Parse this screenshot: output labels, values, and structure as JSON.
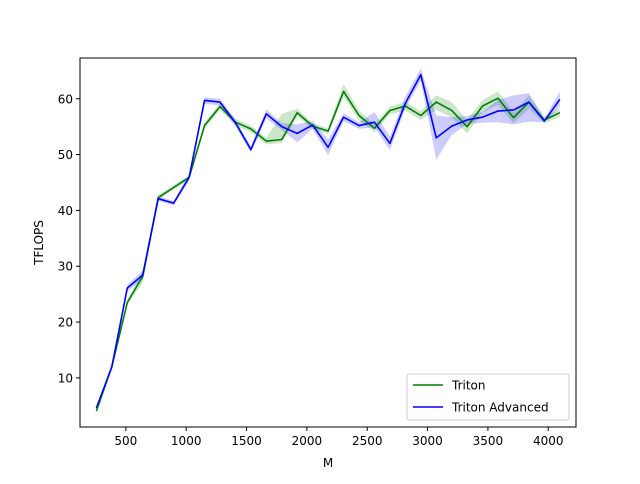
{
  "chart_data": {
    "type": "line",
    "xlabel": "M",
    "ylabel": "TFLOPS",
    "xlim": [
      120,
      4230
    ],
    "ylim": [
      1.2,
      67.3
    ],
    "xticks": [
      500,
      1000,
      1500,
      2000,
      2500,
      3000,
      3500,
      4000
    ],
    "yticks": [
      10,
      20,
      30,
      40,
      50,
      60
    ],
    "grid": false,
    "legend": {
      "position": "lower-right",
      "entries": [
        "Triton",
        "Triton Advanced"
      ]
    },
    "x": [
      256,
      384,
      512,
      640,
      768,
      896,
      1024,
      1152,
      1280,
      1408,
      1536,
      1664,
      1792,
      1920,
      2048,
      2176,
      2304,
      2432,
      2560,
      2688,
      2816,
      2944,
      3072,
      3200,
      3328,
      3456,
      3584,
      3712,
      3840,
      3968,
      4096
    ],
    "series": [
      {
        "name": "Triton",
        "color": "#008000",
        "values": [
          4.1,
          12.0,
          23.5,
          28.2,
          42.3,
          44.1,
          45.9,
          55.2,
          58.6,
          55.8,
          54.6,
          52.4,
          52.7,
          57.5,
          55.1,
          54.2,
          61.3,
          57.0,
          54.7,
          57.9,
          58.7,
          57.0,
          59.4,
          57.9,
          55.0,
          58.7,
          60.1,
          56.6,
          59.4,
          56.2,
          57.5
        ],
        "band_low": [
          3.7,
          11.7,
          23.1,
          27.0,
          41.9,
          43.7,
          45.5,
          54.6,
          58.0,
          55.2,
          54.0,
          51.8,
          52.1,
          56.8,
          54.6,
          53.7,
          60.4,
          56.1,
          54.0,
          57.2,
          57.9,
          56.2,
          58.0,
          56.6,
          53.8,
          57.6,
          58.9,
          55.6,
          58.2,
          55.6,
          56.8
        ],
        "band_high": [
          4.5,
          12.3,
          23.9,
          29.3,
          42.7,
          44.5,
          46.3,
          55.8,
          59.2,
          56.4,
          55.2,
          53.0,
          57.3,
          58.2,
          55.6,
          54.7,
          62.6,
          57.9,
          55.4,
          58.6,
          59.5,
          57.8,
          60.6,
          59.4,
          56.2,
          59.8,
          61.3,
          57.6,
          60.6,
          56.8,
          58.2
        ]
      },
      {
        "name": "Triton Advanced",
        "color": "#0000ff",
        "values": [
          4.6,
          12.0,
          26.1,
          28.4,
          42.1,
          41.3,
          45.9,
          59.7,
          59.4,
          55.7,
          50.9,
          57.3,
          55.0,
          53.8,
          55.3,
          51.3,
          56.7,
          55.2,
          55.8,
          52.0,
          59.2,
          64.3,
          53.0,
          55.1,
          56.2,
          56.7,
          57.8,
          58.0,
          59.4,
          56.0,
          59.9
        ],
        "band_low": [
          4.2,
          11.7,
          25.5,
          27.6,
          41.7,
          40.9,
          45.3,
          59.1,
          58.8,
          55.1,
          50.3,
          56.5,
          54.4,
          52.2,
          54.6,
          49.9,
          56.0,
          54.6,
          54.9,
          50.8,
          58.3,
          63.2,
          49.1,
          53.5,
          55.5,
          55.7,
          55.8,
          55.4,
          55.9,
          55.8,
          58.5
        ],
        "band_high": [
          5.0,
          12.3,
          26.7,
          29.2,
          42.5,
          41.7,
          46.5,
          60.3,
          60.0,
          56.3,
          51.5,
          58.1,
          55.6,
          55.4,
          56.0,
          52.7,
          57.4,
          55.8,
          57.6,
          53.2,
          60.4,
          65.4,
          57.0,
          56.7,
          56.9,
          57.7,
          59.8,
          60.6,
          61.0,
          56.4,
          61.3
        ]
      }
    ]
  }
}
